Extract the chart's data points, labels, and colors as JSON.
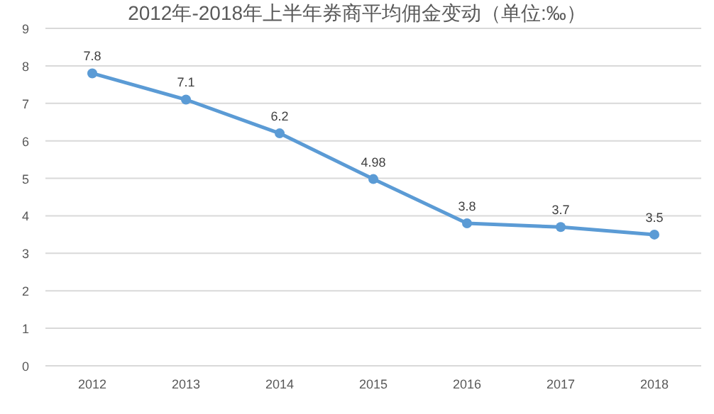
{
  "chart_data": {
    "type": "line",
    "title": "2012年-2018年上半年券商平均佣金变动（单位:‰）",
    "categories": [
      "2012",
      "2013",
      "2014",
      "2015",
      "2016",
      "2017",
      "2018"
    ],
    "values": [
      7.8,
      7.1,
      6.2,
      4.98,
      3.8,
      3.7,
      3.5
    ],
    "color": "#5b9bd5",
    "ylim": [
      0,
      9
    ],
    "yticks": [
      0,
      1,
      2,
      3,
      4,
      5,
      6,
      7,
      8,
      9
    ],
    "grid": "y",
    "marker": "circle",
    "data_labels": true
  }
}
